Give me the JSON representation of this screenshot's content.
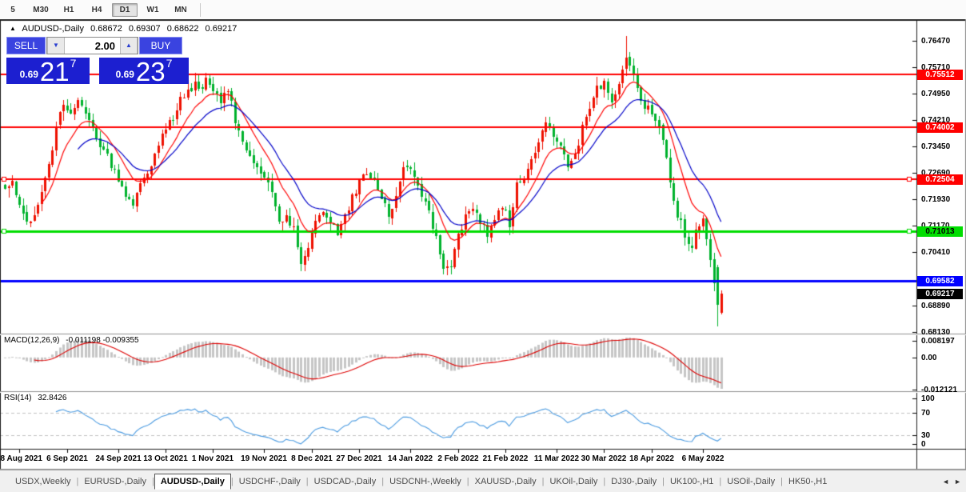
{
  "toolbar": {
    "items": [
      "5",
      "M30",
      "H1",
      "H4",
      "D1",
      "W1",
      "MN"
    ],
    "active": "D1"
  },
  "chart_title": {
    "arrow": "▲",
    "symbol": "AUDUSD-,Daily",
    "open": "0.68672",
    "high": "0.69307",
    "low": "0.68622",
    "close": "0.69217"
  },
  "trade_panel": {
    "sell_button": "SELL",
    "buy_button": "BUY",
    "volume": "2.00",
    "stepper_down_icon": "▼",
    "stepper_up_icon": "▲",
    "sell_price": {
      "prefix": "0.69",
      "big": "21",
      "sup": "7"
    },
    "buy_price": {
      "prefix": "0.69",
      "big": "23",
      "sup": "7"
    }
  },
  "chart_data": [
    {
      "type": "candlestick",
      "title": "AUDUSD-,Daily",
      "timeframe": "D1",
      "up_color": "#ee1100",
      "down_color": "#00b22d",
      "bar_count": 197,
      "last_bar": {
        "open": 0.68672,
        "high": 0.69307,
        "low": 0.68622,
        "close": 0.69217
      },
      "y_ticks": [
        0.7647,
        0.7571,
        0.7495,
        0.7421,
        0.7345,
        0.7269,
        0.7193,
        0.7117,
        0.7041,
        0.6889,
        0.6813
      ],
      "ylim": [
        0.6813,
        0.7647
      ],
      "x_tick_dates": [
        "18 Aug 2021",
        "6 Sep 2021",
        "24 Sep 2021",
        "13 Oct 2021",
        "1 Nov 2021",
        "19 Nov 2021",
        "8 Dec 2021",
        "27 Dec 2021",
        "14 Jan 2022",
        "2 Feb 2022",
        "21 Feb 2022",
        "11 Mar 2022",
        "30 Mar 2022",
        "18 Apr 2022",
        "6 May 2022"
      ],
      "x_tick_bar_index": [
        4,
        17,
        31,
        44,
        57,
        71,
        84,
        97,
        111,
        124,
        137,
        151,
        164,
        177,
        191
      ],
      "close_path_anchors": [
        [
          0,
          0.7235
        ],
        [
          2,
          0.725
        ],
        [
          4,
          0.718
        ],
        [
          6,
          0.7125
        ],
        [
          8,
          0.715
        ],
        [
          10,
          0.721
        ],
        [
          12,
          0.729
        ],
        [
          14,
          0.74
        ],
        [
          16,
          0.7475
        ],
        [
          18,
          0.743
        ],
        [
          20,
          0.747
        ],
        [
          23,
          0.742
        ],
        [
          26,
          0.735
        ],
        [
          28,
          0.731
        ],
        [
          31,
          0.725
        ],
        [
          33,
          0.721
        ],
        [
          35,
          0.717
        ],
        [
          37,
          0.723
        ],
        [
          40,
          0.73
        ],
        [
          43,
          0.737
        ],
        [
          46,
          0.743
        ],
        [
          48,
          0.7475
        ],
        [
          50,
          0.75
        ],
        [
          52,
          0.753
        ],
        [
          54,
          0.7505
        ],
        [
          55,
          0.754
        ],
        [
          57,
          0.751
        ],
        [
          59,
          0.748
        ],
        [
          61,
          0.7515
        ],
        [
          63,
          0.742
        ],
        [
          65,
          0.737
        ],
        [
          67,
          0.732
        ],
        [
          69,
          0.728
        ],
        [
          71,
          0.725
        ],
        [
          73,
          0.722
        ],
        [
          75,
          0.713
        ],
        [
          77,
          0.7145
        ],
        [
          79,
          0.711
        ],
        [
          81,
          0.702
        ],
        [
          83,
          0.706
        ],
        [
          85,
          0.712
        ],
        [
          87,
          0.7155
        ],
        [
          89,
          0.713
        ],
        [
          91,
          0.71
        ],
        [
          93,
          0.714
        ],
        [
          95,
          0.72
        ],
        [
          97,
          0.724
        ],
        [
          99,
          0.7265
        ],
        [
          101,
          0.724
        ],
        [
          103,
          0.719
        ],
        [
          105,
          0.715
        ],
        [
          107,
          0.719
        ],
        [
          109,
          0.729
        ],
        [
          111,
          0.727
        ],
        [
          113,
          0.722
        ],
        [
          115,
          0.718
        ],
        [
          117,
          0.712
        ],
        [
          119,
          0.704
        ],
        [
          120,
          0.699
        ],
        [
          122,
          0.7
        ],
        [
          124,
          0.709
        ],
        [
          126,
          0.714
        ],
        [
          128,
          0.717
        ],
        [
          130,
          0.713
        ],
        [
          132,
          0.709
        ],
        [
          134,
          0.714
        ],
        [
          136,
          0.718
        ],
        [
          138,
          0.712
        ],
        [
          140,
          0.723
        ],
        [
          142,
          0.726
        ],
        [
          144,
          0.73
        ],
        [
          146,
          0.735
        ],
        [
          148,
          0.742
        ],
        [
          150,
          0.738
        ],
        [
          152,
          0.734
        ],
        [
          154,
          0.728
        ],
        [
          156,
          0.732
        ],
        [
          158,
          0.74
        ],
        [
          160,
          0.746
        ],
        [
          162,
          0.751
        ],
        [
          164,
          0.753
        ],
        [
          166,
          0.748
        ],
        [
          168,
          0.752
        ],
        [
          170,
          0.76
        ],
        [
          172,
          0.755
        ],
        [
          174,
          0.748
        ],
        [
          176,
          0.745
        ],
        [
          178,
          0.742
        ],
        [
          180,
          0.737
        ],
        [
          182,
          0.725
        ],
        [
          184,
          0.715
        ],
        [
          186,
          0.709
        ],
        [
          188,
          0.705
        ],
        [
          189,
          0.71
        ],
        [
          191,
          0.714
        ],
        [
          193,
          0.703
        ],
        [
          194,
          0.696
        ],
        [
          195,
          0.689
        ],
        [
          196,
          0.69217
        ]
      ],
      "bar_overrides": {
        "55": {
          "high": 0.7555
        },
        "170": {
          "high": 0.7661,
          "close": 0.76
        },
        "195": {
          "open": 0.6999,
          "high": 0.7005,
          "low": 0.6829,
          "close": 0.689
        },
        "196": {
          "open": 0.68672,
          "high": 0.69307,
          "low": 0.68622,
          "close": 0.69217
        }
      },
      "moving_averages": [
        {
          "type": "EMA",
          "period": 10,
          "color": "#ff0000"
        },
        {
          "type": "EMA",
          "period": 20,
          "color": "#0000c8"
        }
      ],
      "horizontal_lines": [
        {
          "price": 0.75512,
          "label": "0.75512",
          "color": "#ff0000",
          "width": 2,
          "label_text_color": "#ffffff",
          "end_handles": false
        },
        {
          "price": 0.74002,
          "label": "0.74002",
          "color": "#ff0000",
          "width": 2,
          "label_text_color": "#ffffff",
          "end_handles": false
        },
        {
          "price": 0.72504,
          "label": "0.72504",
          "color": "#ff0000",
          "width": 2,
          "label_text_color": "#ffffff",
          "end_handles": true
        },
        {
          "price": 0.71013,
          "label": "0.71013",
          "color": "#00dd00",
          "width": 3,
          "label_text_color": "#000000",
          "end_handles": true
        },
        {
          "price": 0.69582,
          "label": "0.69582",
          "color": "#0000ff",
          "width": 3,
          "label_text_color": "#ffffff",
          "end_handles": false
        }
      ],
      "current_price_label": {
        "price": 0.69217,
        "text": "0.69217",
        "bg": "#000000",
        "fg": "#ffffff"
      }
    },
    {
      "type": "macd",
      "name": "MACD(12,26,9)",
      "params": [
        12,
        26,
        9
      ],
      "value_text": "-0.011198 -0.009355",
      "macd_value": -0.011198,
      "signal_value": -0.009355,
      "axis_labels": [
        "0.008197",
        "0.00",
        "-0.012121"
      ],
      "histogram_color": "#c6c6c6",
      "signal_color": "#dd0000"
    },
    {
      "type": "rsi",
      "name": "RSI(14)",
      "period": 14,
      "value_text": "32.8426",
      "value": 32.8426,
      "axis_labels": [
        "100",
        "70",
        "30",
        "0"
      ],
      "levels": [
        70,
        30
      ],
      "line_color": "#4a9ae0",
      "level_line_color": "#c0c0c0"
    }
  ],
  "tabs": {
    "separator": "|",
    "active_index": 2,
    "scroll_left_icon": "◄",
    "scroll_right_icon": "►",
    "items": [
      "USDX,Weekly",
      "EURUSD-,Daily",
      "AUDUSD-,Daily",
      "USDCHF-,Daily",
      "USDCAD-,Daily",
      "USDCNH-,Weekly",
      "XAUUSD-,Daily",
      "UKOil-,Daily",
      "DJ30-,Daily",
      "UK100-,H1",
      "USOil-,Daily",
      "HK50-,H1"
    ]
  }
}
